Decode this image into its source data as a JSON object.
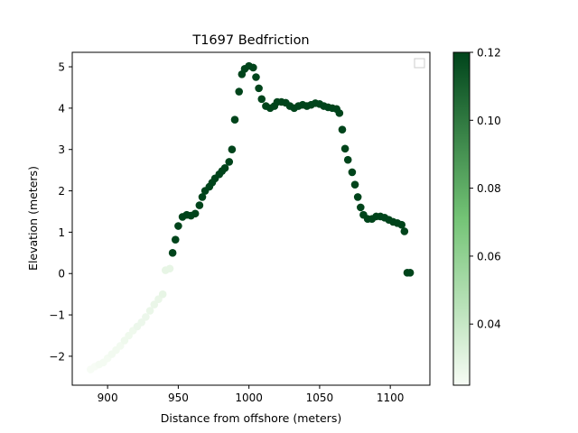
{
  "chart_data": {
    "type": "scatter",
    "title": "T1697 Bedfriction",
    "xlabel": "Distance from offshore (meters)",
    "ylabel": "Elevation (meters)",
    "xlim": [
      875,
      1128
    ],
    "ylim": [
      -2.7,
      5.35
    ],
    "xticks": [
      900,
      950,
      1000,
      1050,
      1100
    ],
    "yticks": [
      -2,
      -1,
      0,
      1,
      2,
      3,
      4,
      5
    ],
    "grid": false,
    "legend": {
      "placement": "top-right",
      "entries": []
    },
    "colorbar": {
      "colormap": "Greens",
      "range": [
        0.022,
        0.12
      ],
      "ticks": [
        0.04,
        0.06,
        0.08,
        0.1,
        0.12
      ],
      "tick_labels": [
        "0.04",
        "0.06",
        "0.08",
        "0.10",
        "0.12"
      ],
      "color_low": "#f7fcf5",
      "color_mid": "#74c476",
      "color_high": "#00441b"
    },
    "points": [
      {
        "x": 888,
        "y": -2.32,
        "c": 0.022
      },
      {
        "x": 891,
        "y": -2.25,
        "c": 0.022
      },
      {
        "x": 894,
        "y": -2.2,
        "c": 0.023
      },
      {
        "x": 897,
        "y": -2.15,
        "c": 0.023
      },
      {
        "x": 900,
        "y": -2.05,
        "c": 0.023
      },
      {
        "x": 903,
        "y": -1.95,
        "c": 0.024
      },
      {
        "x": 906,
        "y": -1.85,
        "c": 0.024
      },
      {
        "x": 909,
        "y": -1.75,
        "c": 0.024
      },
      {
        "x": 912,
        "y": -1.62,
        "c": 0.025
      },
      {
        "x": 915,
        "y": -1.5,
        "c": 0.025
      },
      {
        "x": 918,
        "y": -1.38,
        "c": 0.025
      },
      {
        "x": 921,
        "y": -1.28,
        "c": 0.026
      },
      {
        "x": 924,
        "y": -1.18,
        "c": 0.026
      },
      {
        "x": 927,
        "y": -1.05,
        "c": 0.026
      },
      {
        "x": 930,
        "y": -0.9,
        "c": 0.027
      },
      {
        "x": 933,
        "y": -0.75,
        "c": 0.027
      },
      {
        "x": 936,
        "y": -0.62,
        "c": 0.027
      },
      {
        "x": 939,
        "y": -0.5,
        "c": 0.028
      },
      {
        "x": 941,
        "y": 0.08,
        "c": 0.028
      },
      {
        "x": 944,
        "y": 0.12,
        "c": 0.028
      },
      {
        "x": 946,
        "y": 0.5,
        "c": 0.12
      },
      {
        "x": 948,
        "y": 0.82,
        "c": 0.12
      },
      {
        "x": 950,
        "y": 1.15,
        "c": 0.12
      },
      {
        "x": 953,
        "y": 1.37,
        "c": 0.12
      },
      {
        "x": 956,
        "y": 1.42,
        "c": 0.12
      },
      {
        "x": 959,
        "y": 1.4,
        "c": 0.12
      },
      {
        "x": 962,
        "y": 1.45,
        "c": 0.12
      },
      {
        "x": 965,
        "y": 1.65,
        "c": 0.12
      },
      {
        "x": 967,
        "y": 1.85,
        "c": 0.12
      },
      {
        "x": 969,
        "y": 2.0,
        "c": 0.12
      },
      {
        "x": 972,
        "y": 2.1,
        "c": 0.12
      },
      {
        "x": 974,
        "y": 2.2,
        "c": 0.12
      },
      {
        "x": 976,
        "y": 2.3,
        "c": 0.12
      },
      {
        "x": 979,
        "y": 2.4,
        "c": 0.12
      },
      {
        "x": 981,
        "y": 2.48,
        "c": 0.12
      },
      {
        "x": 983,
        "y": 2.55,
        "c": 0.12
      },
      {
        "x": 986,
        "y": 2.7,
        "c": 0.12
      },
      {
        "x": 988,
        "y": 3.0,
        "c": 0.12
      },
      {
        "x": 990,
        "y": 3.72,
        "c": 0.12
      },
      {
        "x": 993,
        "y": 4.4,
        "c": 0.12
      },
      {
        "x": 995,
        "y": 4.82,
        "c": 0.12
      },
      {
        "x": 997,
        "y": 4.95,
        "c": 0.12
      },
      {
        "x": 1000,
        "y": 5.02,
        "c": 0.12
      },
      {
        "x": 1003,
        "y": 4.98,
        "c": 0.12
      },
      {
        "x": 1005,
        "y": 4.75,
        "c": 0.12
      },
      {
        "x": 1007,
        "y": 4.48,
        "c": 0.12
      },
      {
        "x": 1009,
        "y": 4.22,
        "c": 0.12
      },
      {
        "x": 1012,
        "y": 4.05,
        "c": 0.12
      },
      {
        "x": 1015,
        "y": 4.0,
        "c": 0.12
      },
      {
        "x": 1018,
        "y": 4.05,
        "c": 0.12
      },
      {
        "x": 1020,
        "y": 4.15,
        "c": 0.12
      },
      {
        "x": 1023,
        "y": 4.15,
        "c": 0.12
      },
      {
        "x": 1026,
        "y": 4.13,
        "c": 0.12
      },
      {
        "x": 1029,
        "y": 4.05,
        "c": 0.12
      },
      {
        "x": 1032,
        "y": 4.0,
        "c": 0.12
      },
      {
        "x": 1035,
        "y": 4.05,
        "c": 0.12
      },
      {
        "x": 1038,
        "y": 4.08,
        "c": 0.12
      },
      {
        "x": 1041,
        "y": 4.05,
        "c": 0.12
      },
      {
        "x": 1044,
        "y": 4.08,
        "c": 0.12
      },
      {
        "x": 1047,
        "y": 4.12,
        "c": 0.12
      },
      {
        "x": 1050,
        "y": 4.1,
        "c": 0.12
      },
      {
        "x": 1053,
        "y": 4.05,
        "c": 0.12
      },
      {
        "x": 1056,
        "y": 4.02,
        "c": 0.12
      },
      {
        "x": 1059,
        "y": 4.0,
        "c": 0.12
      },
      {
        "x": 1062,
        "y": 3.98,
        "c": 0.12
      },
      {
        "x": 1064,
        "y": 3.88,
        "c": 0.12
      },
      {
        "x": 1066,
        "y": 3.48,
        "c": 0.12
      },
      {
        "x": 1068,
        "y": 3.02,
        "c": 0.12
      },
      {
        "x": 1070,
        "y": 2.75,
        "c": 0.12
      },
      {
        "x": 1073,
        "y": 2.45,
        "c": 0.12
      },
      {
        "x": 1075,
        "y": 2.15,
        "c": 0.12
      },
      {
        "x": 1077,
        "y": 1.85,
        "c": 0.12
      },
      {
        "x": 1079,
        "y": 1.6,
        "c": 0.12
      },
      {
        "x": 1081,
        "y": 1.42,
        "c": 0.12
      },
      {
        "x": 1084,
        "y": 1.32,
        "c": 0.12
      },
      {
        "x": 1087,
        "y": 1.32,
        "c": 0.12
      },
      {
        "x": 1090,
        "y": 1.38,
        "c": 0.12
      },
      {
        "x": 1093,
        "y": 1.38,
        "c": 0.12
      },
      {
        "x": 1096,
        "y": 1.35,
        "c": 0.12
      },
      {
        "x": 1099,
        "y": 1.3,
        "c": 0.12
      },
      {
        "x": 1102,
        "y": 1.25,
        "c": 0.12
      },
      {
        "x": 1105,
        "y": 1.22,
        "c": 0.12
      },
      {
        "x": 1108,
        "y": 1.18,
        "c": 0.12
      },
      {
        "x": 1110,
        "y": 1.02,
        "c": 0.12
      },
      {
        "x": 1112,
        "y": 0.02,
        "c": 0.12
      },
      {
        "x": 1114,
        "y": 0.02,
        "c": 0.12
      }
    ]
  }
}
